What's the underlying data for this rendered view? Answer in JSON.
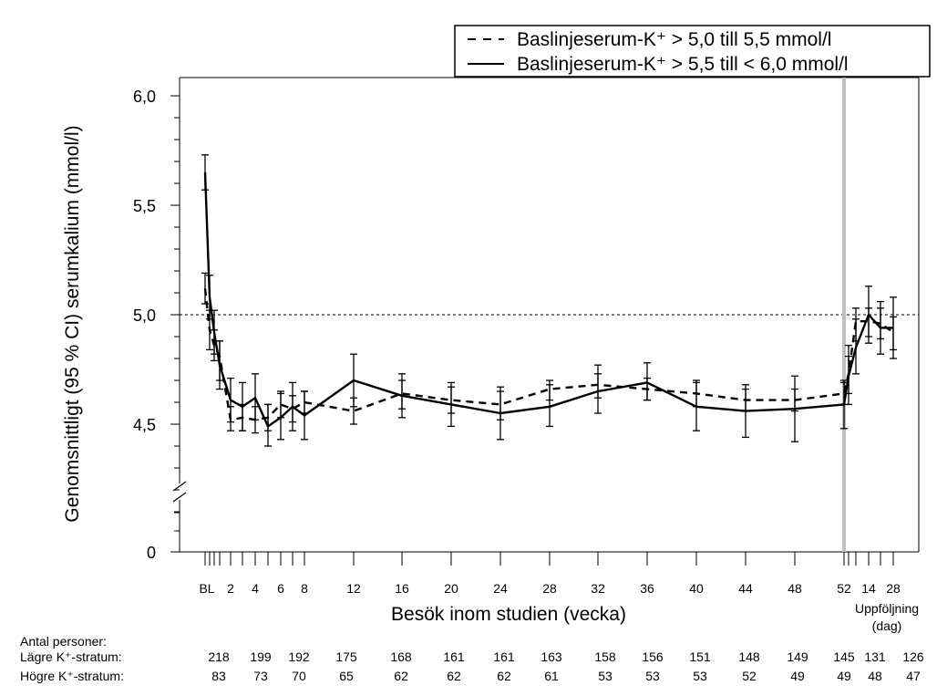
{
  "chart_data": {
    "type": "line",
    "ylabel": "Genomsnittligt (95 % CI) serumkalium (mmol/l)",
    "xlabel": "Besök inom studien (vecka)",
    "ylim": [
      4.0,
      6.0
    ],
    "y_ticks": [
      "0",
      "4,5",
      "5,0",
      "5,5",
      "6,0"
    ],
    "y_axis_break": true,
    "reference_line": 5.0,
    "x_tick_labels": [
      "BL",
      "2",
      "4",
      "6",
      "8",
      "12",
      "16",
      "20",
      "24",
      "28",
      "32",
      "36",
      "40",
      "44",
      "48",
      "52",
      "14",
      "28"
    ],
    "followup_label_line1": "Uppföljning",
    "followup_label_line2": "(dag)",
    "legend_position": "top-right",
    "series": [
      {
        "name": "Baslinjeserum-K⁺ > 5,0 till 5,5 mmol/l",
        "style": "dashed",
        "x": [
          "BL",
          "BL+1",
          "BL+2",
          "1",
          "2",
          "3",
          "4",
          "5",
          "6",
          "7",
          "8",
          "12",
          "16",
          "20",
          "24",
          "28",
          "32",
          "36",
          "40",
          "44",
          "48",
          "52",
          "52+1",
          "52+2",
          "14",
          "21",
          "28"
        ],
        "y": [
          5.12,
          4.93,
          4.86,
          4.81,
          4.52,
          4.53,
          4.52,
          4.53,
          4.59,
          4.57,
          4.6,
          4.56,
          4.64,
          4.61,
          4.59,
          4.66,
          4.68,
          4.66,
          4.64,
          4.61,
          4.61,
          4.64,
          4.73,
          4.97,
          4.97,
          4.96,
          4.92
        ],
        "ci_low": [
          5.05,
          4.84,
          4.79,
          4.7,
          4.47,
          4.47,
          4.46,
          4.47,
          4.53,
          4.51,
          4.55,
          4.5,
          4.57,
          4.55,
          4.52,
          4.61,
          4.62,
          4.61,
          4.58,
          4.56,
          4.56,
          4.59,
          4.64,
          4.88,
          4.9,
          4.89,
          4.84
        ],
        "ci_high": [
          5.19,
          5.02,
          4.93,
          4.88,
          4.58,
          4.59,
          4.58,
          4.59,
          4.65,
          4.63,
          4.65,
          4.62,
          4.7,
          4.67,
          4.65,
          4.7,
          4.73,
          4.71,
          4.7,
          4.66,
          4.66,
          4.69,
          4.81,
          5.03,
          5.03,
          5.03,
          4.99
        ]
      },
      {
        "name": "Baslinjeserum-K⁺ > 5,5 till < 6,0 mmol/l",
        "style": "solid",
        "x": [
          "BL",
          "BL+1",
          "BL+2",
          "1",
          "2",
          "3",
          "4",
          "5",
          "6",
          "7",
          "8",
          "12",
          "16",
          "20",
          "24",
          "28",
          "32",
          "36",
          "40",
          "44",
          "48",
          "52",
          "52+1",
          "52+2",
          "14",
          "21",
          "28"
        ],
        "y": [
          5.65,
          5.08,
          4.92,
          4.77,
          4.61,
          4.58,
          4.62,
          4.49,
          4.53,
          4.58,
          4.54,
          4.7,
          4.63,
          4.59,
          4.55,
          4.58,
          4.65,
          4.69,
          4.58,
          4.56,
          4.57,
          4.59,
          4.72,
          4.85,
          5.0,
          4.94,
          4.94
        ],
        "ci_low": [
          5.57,
          4.98,
          4.82,
          4.66,
          4.51,
          4.47,
          4.52,
          4.4,
          4.43,
          4.47,
          4.43,
          4.58,
          4.53,
          4.49,
          4.43,
          4.49,
          4.55,
          4.61,
          4.47,
          4.44,
          4.42,
          4.48,
          4.59,
          4.73,
          4.87,
          4.82,
          4.8
        ],
        "ci_high": [
          5.73,
          5.18,
          5.02,
          4.88,
          4.71,
          4.69,
          4.73,
          4.59,
          4.64,
          4.69,
          4.65,
          4.82,
          4.73,
          4.69,
          4.67,
          4.68,
          4.77,
          4.78,
          4.69,
          4.68,
          4.72,
          4.7,
          4.86,
          4.98,
          5.13,
          5.06,
          5.08
        ]
      }
    ],
    "n_header": "Antal personer:",
    "n_rows": [
      {
        "label": "Lägre K⁺-stratum:",
        "values": [
          "218",
          "199",
          "192",
          "175",
          "168",
          "161",
          "161",
          "163",
          "158",
          "156",
          "151",
          "148",
          "149",
          "145",
          "131",
          "126"
        ]
      },
      {
        "label": "Högre K⁺-stratum:",
        "values": [
          "83",
          "73",
          "70",
          "65",
          "62",
          "62",
          "62",
          "61",
          "53",
          "53",
          "53",
          "52",
          "49",
          "49",
          "48",
          "47"
        ]
      }
    ]
  }
}
